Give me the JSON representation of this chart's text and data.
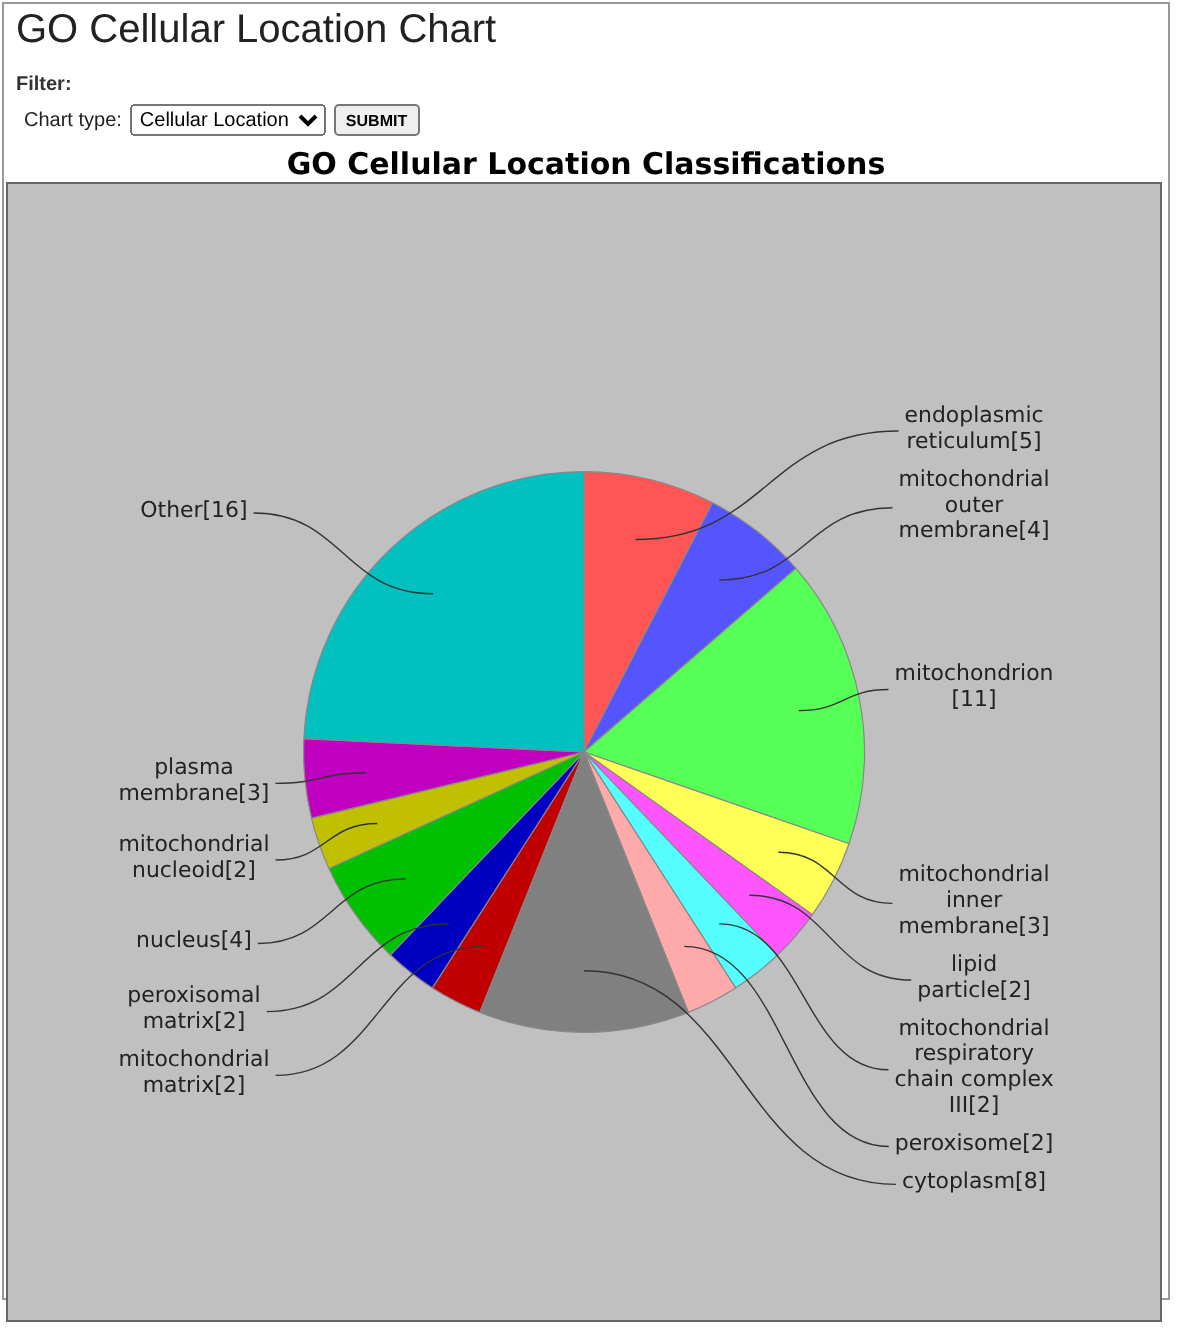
{
  "chart_data": {
    "type": "pie",
    "title": "GO Cellular Location Classifications",
    "annotations": [
      "GO Cellular Location Chart",
      "Filter:",
      "Chart type:",
      "Cellular Location",
      "SUBMIT"
    ],
    "categories": [
      "endoplasmic reticulum[5]",
      "mitochondrial outer membrane[4]",
      "mitochondrion [11]",
      "mitochondrial inner membrane[3]",
      "lipid particle[2]",
      "mitochondrial respiratory chain complex III[2]",
      "peroxisome[2]",
      "cytoplasm[8]",
      "mitochondrial matrix[2]",
      "peroxisomal matrix[2]",
      "nucleus[4]",
      "mitochondrial nucleoid[2]",
      "plasma membrane[3]",
      "Other[16]"
    ],
    "values": [
      5,
      4,
      11,
      3,
      2,
      2,
      2,
      8,
      2,
      2,
      4,
      2,
      3,
      16
    ],
    "colors": [
      "#ff5555",
      "#5555ff",
      "#55ff55",
      "#ffff55",
      "#ff55ff",
      "#55ffff",
      "#ffaaaa",
      "#808080",
      "#c00000",
      "#0000c0",
      "#00c000",
      "#c0c000",
      "#c000c0",
      "#00c0c0"
    ]
  }
}
